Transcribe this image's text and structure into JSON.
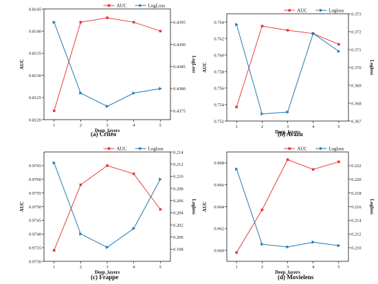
{
  "figure": {
    "legend_auc": "AUC",
    "legend_logloss": "Logloss",
    "xlabel": "Deep_layers",
    "ylabel_left": "AUC",
    "ylabel_right": "Logloss"
  },
  "colors": {
    "auc": "#e8393c",
    "logloss": "#1f77b4",
    "axis": "#111111",
    "background": "#ffffff"
  },
  "chart_data": [
    {
      "type": "line",
      "caption": "(a) Criteo",
      "legend_auc": "AUC",
      "legend_logloss": "LogLoss",
      "x": [
        1,
        2,
        3,
        4,
        5
      ],
      "xlabel": "Deep_layers",
      "ylabel": "AUC",
      "y2label": "LogLoss",
      "ylim": [
        0.812,
        0.8145
      ],
      "yticks": [
        "0.8120",
        "0.8125",
        "0.8130",
        "0.8135",
        "0.8140",
        "0.8145"
      ],
      "y2lim": [
        0.4373,
        0.4398
      ],
      "y2ticks": [
        "0.4375",
        "0.4380",
        "0.4385",
        "0.4390",
        "0.4395"
      ],
      "series": [
        {
          "name": "AUC",
          "axis": "left",
          "marker": "square",
          "values": [
            0.8122,
            0.8142,
            0.8143,
            0.8142,
            0.814
          ]
        },
        {
          "name": "LogLoss",
          "axis": "right",
          "marker": "triangle-right",
          "values": [
            0.4395,
            0.4379,
            0.4376,
            0.4379,
            0.438
          ]
        }
      ],
      "legend_position": "top-right",
      "grid": false
    },
    {
      "type": "line",
      "caption": "(b) Avazu",
      "legend_auc": "AUC",
      "legend_logloss": "Logloss",
      "x": [
        1,
        2,
        3,
        4,
        5
      ],
      "xlabel": "Deep_layers",
      "ylabel": "AUC",
      "y2label": "Logloss",
      "ylim": [
        0.752,
        0.765
      ],
      "yticks": [
        "0.752",
        "0.754",
        "0.756",
        "0.758",
        "0.760",
        "0.762",
        "0.764"
      ],
      "y2lim": [
        0.367,
        0.373
      ],
      "y2ticks": [
        "0.367",
        "0.368",
        "0.369",
        "0.370",
        "0.371",
        "0.372",
        "0.373"
      ],
      "series": [
        {
          "name": "AUC",
          "axis": "left",
          "marker": "square",
          "values": [
            0.7537,
            0.7635,
            0.763,
            0.7626,
            0.7613
          ]
        },
        {
          "name": "Logloss",
          "axis": "right",
          "marker": "triangle-right",
          "values": [
            0.3724,
            0.3674,
            0.3675,
            0.3719,
            0.3709
          ]
        }
      ],
      "legend_position": "top-right",
      "grid": false
    },
    {
      "type": "line",
      "caption": "(c) Frappe",
      "legend_auc": "AUC",
      "legend_logloss": "Logloss",
      "x": [
        1,
        2,
        3,
        4,
        5
      ],
      "xlabel": "Deep_layers",
      "ylabel": "AUC",
      "y2label": "Logloss",
      "ylim": [
        0.973,
        0.977
      ],
      "yticks": [
        "0.9730",
        "0.9735",
        "0.9740",
        "0.9745",
        "0.9750",
        "0.9755",
        "0.9760",
        "0.9765"
      ],
      "y2lim": [
        0.196,
        0.214
      ],
      "y2ticks": [
        "0.198",
        "0.200",
        "0.202",
        "0.204",
        "0.206",
        "0.208",
        "0.210",
        "0.212",
        "0.214"
      ],
      "series": [
        {
          "name": "AUC",
          "axis": "left",
          "marker": "square",
          "values": [
            0.9734,
            0.9758,
            0.9765,
            0.9762,
            0.9749
          ]
        },
        {
          "name": "Logloss",
          "axis": "right",
          "marker": "triangle-right",
          "values": [
            0.2122,
            0.2005,
            0.1983,
            0.2014,
            0.2095
          ]
        }
      ],
      "legend_position": "top-right",
      "grid": false
    },
    {
      "type": "line",
      "caption": "(d) Movielens",
      "legend_auc": "AUC",
      "legend_logloss": "Logloss",
      "x": [
        1,
        2,
        3,
        4,
        5
      ],
      "xlabel": "Deep_layers",
      "ylabel": "AUC",
      "y2label": "Logloss",
      "ylim": [
        0.959,
        0.969
      ],
      "yticks": [
        "0.960",
        "0.962",
        "0.964",
        "0.966",
        "0.968"
      ],
      "y2lim": [
        0.208,
        0.224
      ],
      "y2ticks": [
        "0.210",
        "0.212",
        "0.214",
        "0.216",
        "0.218",
        "0.220",
        "0.222"
      ],
      "series": [
        {
          "name": "AUC",
          "axis": "left",
          "marker": "square",
          "values": [
            0.9598,
            0.9637,
            0.9683,
            0.9674,
            0.9681
          ]
        },
        {
          "name": "Logloss",
          "axis": "right",
          "marker": "triangle-right",
          "values": [
            0.2215,
            0.2105,
            0.2101,
            0.2108,
            0.2103
          ]
        }
      ],
      "legend_position": "top-right",
      "grid": false
    }
  ]
}
